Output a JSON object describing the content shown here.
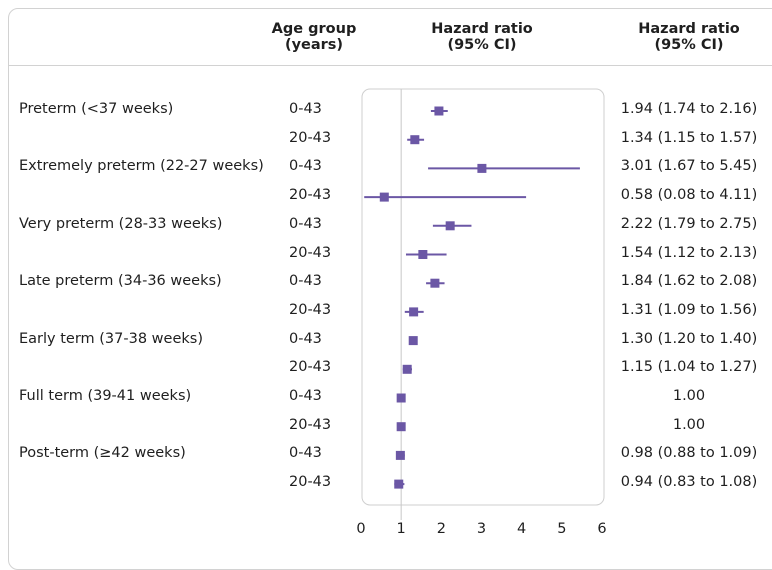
{
  "headers": {
    "age_group": [
      "Age group",
      "(years)"
    ],
    "hazard_ratio_plot": [
      "Hazard ratio",
      "(95% CI)"
    ],
    "hazard_ratio_values": [
      "Hazard ratio",
      "(95% CI)"
    ]
  },
  "colors": {
    "marker": "#6b57a5",
    "reference_line": "#c8c8c8",
    "plot_border": "#cfcfcf"
  },
  "chart_data": {
    "type": "forest",
    "x_ticks": [
      "0",
      "1",
      "2",
      "3",
      "4",
      "5",
      "6"
    ],
    "xlim": [
      0,
      6
    ],
    "reference_value": 1,
    "rows": [
      {
        "category": "Preterm (<37 weeks)",
        "age_group": "0-43",
        "hr": 1.94,
        "lo": 1.74,
        "hi": 2.16,
        "label": "1.94 (1.74 to 2.16)"
      },
      {
        "category": "",
        "age_group": "20-43",
        "hr": 1.34,
        "lo": 1.15,
        "hi": 1.57,
        "label": "1.34 (1.15 to 1.57)"
      },
      {
        "category": "Extremely preterm (22-27 weeks)",
        "age_group": "0-43",
        "hr": 3.01,
        "lo": 1.67,
        "hi": 5.45,
        "label": "3.01 (1.67 to 5.45)"
      },
      {
        "category": "",
        "age_group": "20-43",
        "hr": 0.58,
        "lo": 0.08,
        "hi": 4.11,
        "label": "0.58 (0.08 to 4.11)"
      },
      {
        "category": "Very preterm (28-33 weeks)",
        "age_group": "0-43",
        "hr": 2.22,
        "lo": 1.79,
        "hi": 2.75,
        "label": "2.22 (1.79 to 2.75)"
      },
      {
        "category": "",
        "age_group": "20-43",
        "hr": 1.54,
        "lo": 1.12,
        "hi": 2.13,
        "label": "1.54 (1.12 to 2.13)"
      },
      {
        "category": "Late preterm (34-36 weeks)",
        "age_group": "0-43",
        "hr": 1.84,
        "lo": 1.62,
        "hi": 2.08,
        "label": "1.84 (1.62 to 2.08)"
      },
      {
        "category": "",
        "age_group": "20-43",
        "hr": 1.31,
        "lo": 1.09,
        "hi": 1.56,
        "label": "1.31 (1.09 to 1.56)"
      },
      {
        "category": "Early term (37-38 weeks)",
        "age_group": "0-43",
        "hr": 1.3,
        "lo": 1.2,
        "hi": 1.4,
        "label": "1.30 (1.20 to 1.40)"
      },
      {
        "category": "",
        "age_group": "20-43",
        "hr": 1.15,
        "lo": 1.04,
        "hi": 1.27,
        "label": "1.15 (1.04 to 1.27)"
      },
      {
        "category": "Full term (39-41 weeks)",
        "age_group": "0-43",
        "hr": 1.0,
        "lo": 1.0,
        "hi": 1.0,
        "label": "1.00"
      },
      {
        "category": "",
        "age_group": "20-43",
        "hr": 1.0,
        "lo": 1.0,
        "hi": 1.0,
        "label": "1.00"
      },
      {
        "category": "Post-term (≥42 weeks)",
        "age_group": "0-43",
        "hr": 0.98,
        "lo": 0.88,
        "hi": 1.09,
        "label": "0.98 (0.88 to 1.09)"
      },
      {
        "category": "",
        "age_group": "20-43",
        "hr": 0.94,
        "lo": 0.83,
        "hi": 1.08,
        "label": "0.94 (0.83 to 1.08)"
      }
    ]
  }
}
